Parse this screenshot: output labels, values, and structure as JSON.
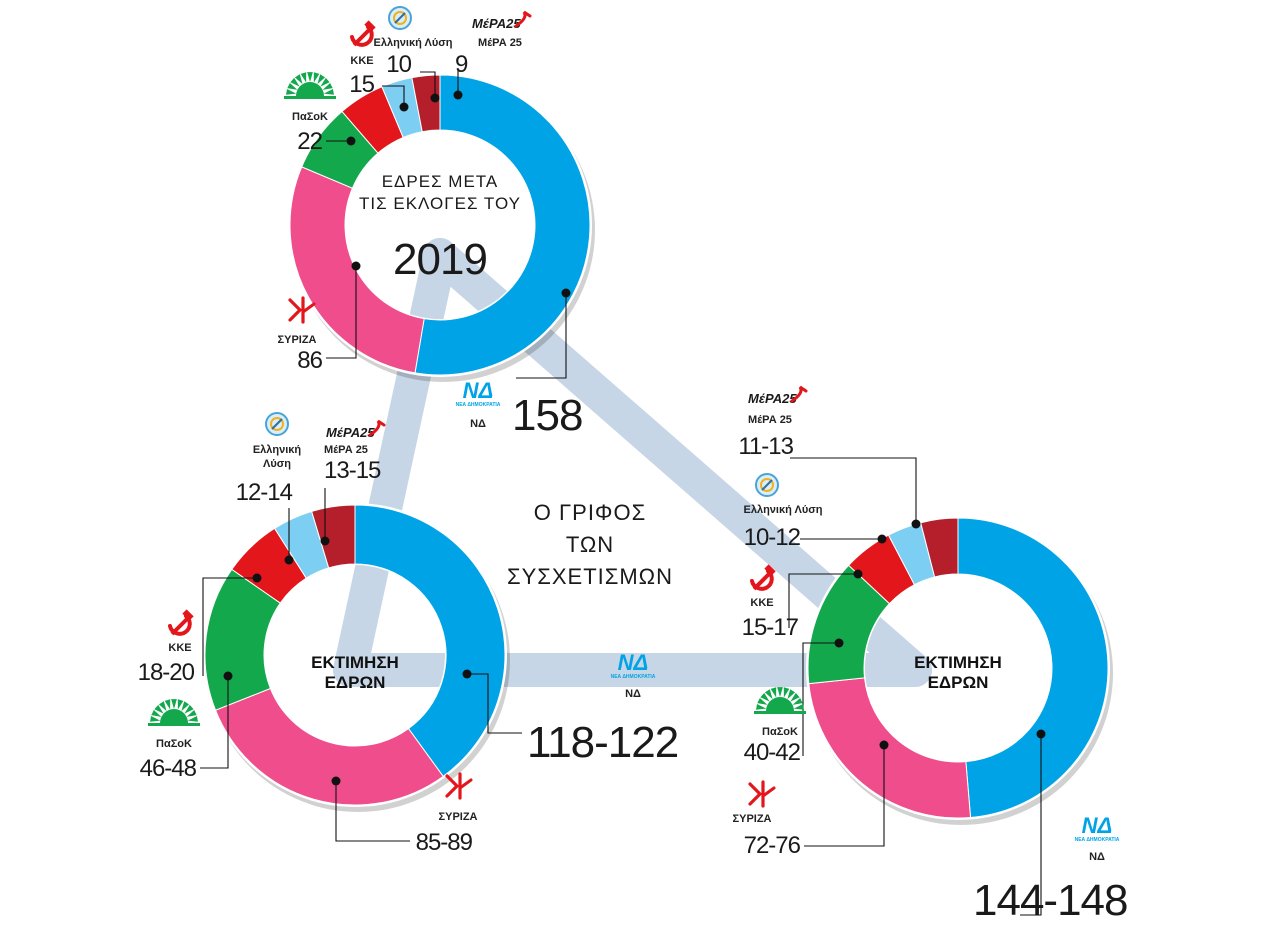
{
  "colors": {
    "nd": "#00A3E6",
    "syriza": "#EF4D8C",
    "pasok": "#14A84D",
    "kke": "#E3161B",
    "elliniki": "#7CCFF3",
    "mera25": "#B51F2B",
    "triangle": "#C7D6E6",
    "line": "#1a1a1a"
  },
  "puzzle_title": [
    "Ο ΓΡΙΦΟΣ",
    "ΤΩΝ",
    "ΣΥΣΧΕΤΙΣΜΩΝ"
  ],
  "nd_logo": {
    "big": "ΝΔ",
    "sub": "ΝΕΑ ΔΗΜΟΚΡΑΤΙΑ"
  },
  "mera_logo": "ΜέΡΑ25",
  "chart_data": [
    {
      "type": "pie",
      "id": "seats-2019",
      "center_lines": [
        "ΕΔΡΕΣ ΜΕΤΑ",
        "ΤΙΣ ΕΚΛΟΓΕΣ ΤΟΥ"
      ],
      "center_year": "2019",
      "categories": [
        "ΝΔ",
        "ΣΥΡΙΖΑ",
        "ΠαΣοΚ",
        "ΚΚΕ",
        "Ελληνική Λύση",
        "ΜέΡΑ 25"
      ],
      "values": [
        158,
        86,
        22,
        15,
        10,
        9
      ],
      "value_labels": [
        "158",
        "86",
        "22",
        "15",
        "10",
        "9"
      ]
    },
    {
      "type": "pie",
      "id": "estimate-left",
      "center_lines": [
        "ΕΚΤΙΜΗΣΗ",
        "ΕΔΡΩΝ"
      ],
      "categories": [
        "ΝΔ",
        "ΣΥΡΙΖΑ",
        "ΠαΣοΚ",
        "ΚΚΕ",
        "Ελληνική Λύση",
        "ΜέΡΑ 25"
      ],
      "values": [
        120,
        87,
        47,
        19,
        13,
        14
      ],
      "value_labels": [
        "118-122",
        "85-89",
        "46-48",
        "18-20",
        "12-14",
        "13-15"
      ],
      "label_names": [
        "ΝΔ",
        "ΣΥΡΙΖΑ",
        "ΠαΣοΚ",
        "ΚΚΕ",
        "Ελληνική\nΛύση",
        "ΜέΡΑ 25"
      ]
    },
    {
      "type": "pie",
      "id": "estimate-right",
      "center_lines": [
        "ΕΚΤΙΜΗΣΗ",
        "ΕΔΡΩΝ"
      ],
      "categories": [
        "ΝΔ",
        "ΣΥΡΙΖΑ",
        "ΠαΣοΚ",
        "ΚΚΕ",
        "Ελληνική Λύση",
        "ΜέΡΑ 25"
      ],
      "values": [
        146,
        74,
        41,
        16,
        11,
        12
      ],
      "value_labels": [
        "144-148",
        "72-76",
        "40-42",
        "15-17",
        "10-12",
        "11-13"
      ],
      "label_names": [
        "ΝΔ",
        "ΣΥΡΙΖΑ",
        "ΠαΣοΚ",
        "ΚΚΕ",
        "Ελληνική Λύση",
        "ΜέΡΑ 25"
      ]
    }
  ]
}
